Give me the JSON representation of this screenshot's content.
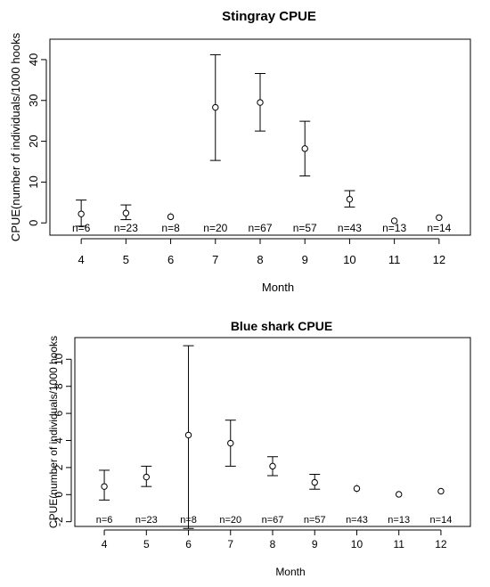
{
  "chart_data": [
    {
      "type": "scatter",
      "title": "Stingray CPUE",
      "xlabel": "Month",
      "ylabel": "CPUE(number of individuals/1000 hooks",
      "x": [
        4,
        5,
        6,
        7,
        8,
        9,
        10,
        11,
        12
      ],
      "y": [
        2.2,
        2.4,
        1.5,
        28.3,
        29.5,
        18.2,
        5.8,
        0.5,
        1.3
      ],
      "lower": [
        -0.8,
        0.8,
        0.9,
        15.3,
        22.5,
        11.5,
        3.9,
        0.1,
        0.9
      ],
      "upper": [
        5.6,
        4.4,
        2.6,
        41.2,
        36.6,
        24.9,
        7.9,
        1.0,
        1.8
      ],
      "n_labels": [
        "n=6",
        "n=23",
        "n=8",
        "n=20",
        "n=67",
        "n=57",
        "n=43",
        "n=13",
        "n=14"
      ],
      "xticks": [
        "4",
        "5",
        "6",
        "7",
        "8",
        "9",
        "10",
        "11",
        "12"
      ],
      "yticks": [
        "0",
        "10",
        "20",
        "30",
        "40"
      ],
      "ylim": [
        -3,
        45
      ],
      "xlim": [
        3.3,
        12.7
      ],
      "grid": false
    },
    {
      "type": "scatter",
      "title": "Blue shark CPUE",
      "xlabel": "Month",
      "ylabel": "CPUE(number of individuals/1000 hooks",
      "x": [
        4,
        5,
        6,
        7,
        8,
        9,
        10,
        11,
        12
      ],
      "y": [
        0.6,
        1.3,
        4.4,
        3.8,
        2.1,
        0.9,
        0.45,
        0.02,
        0.25
      ],
      "lower": [
        -0.4,
        0.6,
        -2.5,
        2.1,
        1.4,
        0.4,
        0.1,
        0.0,
        0.1
      ],
      "upper": [
        1.8,
        2.1,
        11.0,
        5.5,
        2.8,
        1.5,
        0.8,
        0.1,
        0.4
      ],
      "n_labels": [
        "n=6",
        "n=23",
        "n=8",
        "n=20",
        "n=67",
        "n=57",
        "n=43",
        "n=13",
        "n=14"
      ],
      "xticks": [
        "4",
        "5",
        "6",
        "7",
        "8",
        "9",
        "10",
        "11",
        "12"
      ],
      "yticks": [
        "-2",
        "0",
        "2",
        "4",
        "6",
        "8",
        "10"
      ],
      "ylim": [
        -2.35,
        11.6
      ],
      "xlim": [
        3.3,
        12.7
      ],
      "grid": false
    }
  ]
}
